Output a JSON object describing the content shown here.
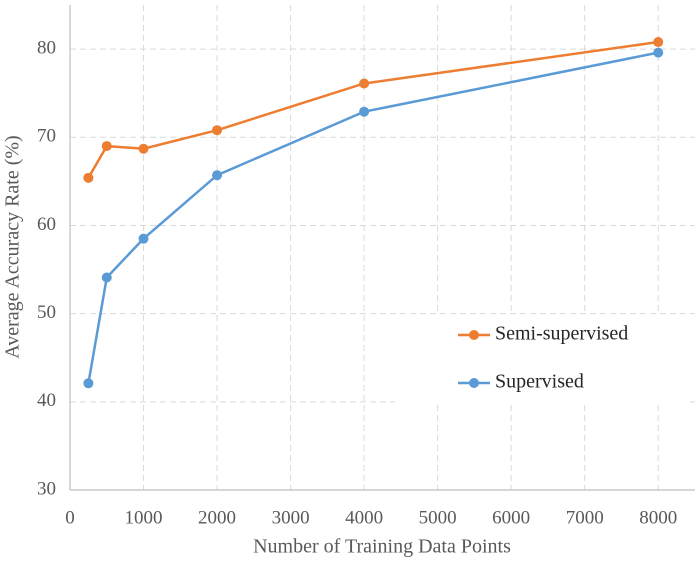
{
  "chart_data": {
    "type": "line",
    "x_label": "Number of Training Data Points",
    "y_label": "Average Accuracy Rate (%)",
    "x": [
      250,
      500,
      1000,
      2000,
      4000,
      8000
    ],
    "series": [
      {
        "name": "Semi-supervised",
        "color": "#ed7d31",
        "values": [
          65.4,
          69.0,
          68.7,
          70.8,
          76.1,
          80.8
        ]
      },
      {
        "name": "Supervised",
        "color": "#5b9bd5",
        "values": [
          42.1,
          54.1,
          58.5,
          65.7,
          72.9,
          79.6
        ]
      }
    ],
    "xlim": [
      0,
      8500
    ],
    "xticks": [
      0,
      1000,
      2000,
      3000,
      4000,
      5000,
      6000,
      7000,
      8000
    ],
    "ylim": [
      30,
      85
    ],
    "yticks": [
      30,
      40,
      50,
      60,
      70,
      80
    ],
    "grid": true,
    "legend": "right"
  }
}
